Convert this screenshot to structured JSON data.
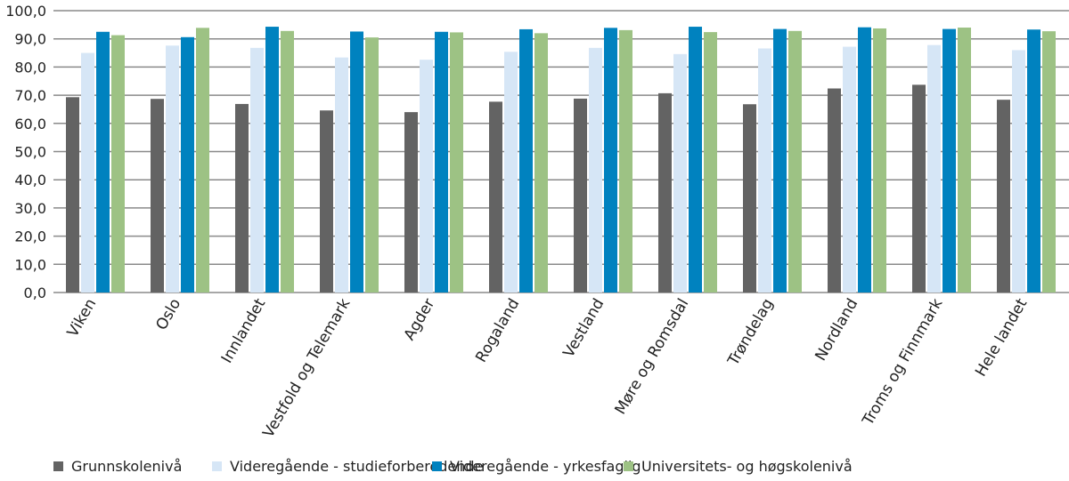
{
  "chart_data": {
    "type": "bar",
    "title": "",
    "xlabel": "",
    "ylabel": "",
    "ylim": [
      0,
      100
    ],
    "yticks": [
      "0,0",
      "10,0",
      "20,0",
      "30,0",
      "40,0",
      "50,0",
      "60,0",
      "70,0",
      "80,0",
      "90,0",
      "100,0"
    ],
    "grid": true,
    "legend_position": "bottom",
    "categories": [
      "Viken",
      "Oslo",
      "Innlandet",
      "Vestfold og Telemark",
      "Agder",
      "Rogaland",
      "Vestland",
      "Møre og Romsdal",
      "Trøndelag",
      "Nordland",
      "Troms og Finnmark",
      "Hele landet"
    ],
    "series": [
      {
        "name": "Grunnskolenivå",
        "color": "#636363",
        "values": [
          69.3,
          68.7,
          66.9,
          64.6,
          64.0,
          67.7,
          68.8,
          70.7,
          66.8,
          72.4,
          73.7,
          68.4
        ]
      },
      {
        "name": "Videregående - studieforberedende",
        "color": "#d6e6f6",
        "values": [
          85.0,
          87.6,
          86.8,
          83.4,
          82.6,
          85.4,
          86.8,
          84.6,
          86.6,
          87.2,
          87.8,
          86.0
        ]
      },
      {
        "name": "Videregående - yrkesfaglig",
        "color": "#0082bf",
        "values": [
          92.5,
          90.6,
          94.3,
          92.6,
          92.5,
          93.4,
          93.9,
          94.3,
          93.5,
          94.1,
          93.5,
          93.3
        ]
      },
      {
        "name": "Universitets- og høgskolenivå",
        "color": "#9dc284",
        "values": [
          91.3,
          93.9,
          92.8,
          90.5,
          92.3,
          92.0,
          93.1,
          92.4,
          92.8,
          93.7,
          94.0,
          92.7
        ]
      }
    ]
  }
}
